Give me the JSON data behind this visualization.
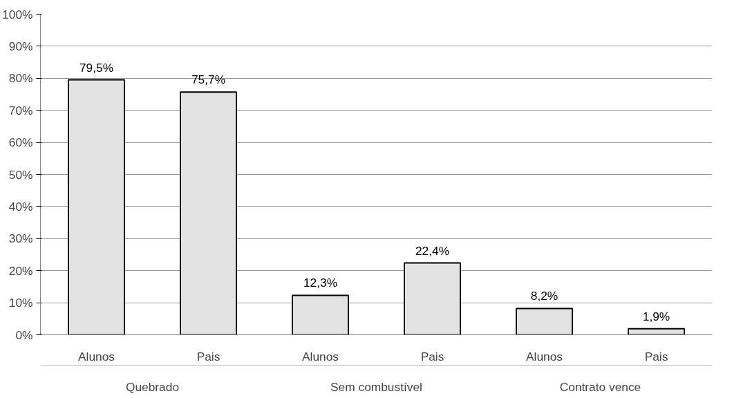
{
  "chart_data": {
    "type": "bar",
    "categories": [
      "Alunos",
      "Pais",
      "Alunos",
      "Pais",
      "Alunos",
      "Pais"
    ],
    "values": [
      79.5,
      75.7,
      12.3,
      22.4,
      8.2,
      1.9
    ],
    "value_labels": [
      "79,5%",
      "75,7%",
      "12,3%",
      "22,4%",
      "8,2%",
      "1,9%"
    ],
    "color": "#e3e3e3",
    "annotations": [
      "Quebrado",
      "Sem combustível",
      "Contrato vence"
    ],
    "ylim": [
      0,
      100
    ],
    "yticks": [
      {
        "value": 0,
        "label": "0%"
      },
      {
        "value": 10,
        "label": "10%"
      },
      {
        "value": 20,
        "label": "20%"
      },
      {
        "value": 30,
        "label": "30%"
      },
      {
        "value": 40,
        "label": "40%"
      },
      {
        "value": 50,
        "label": "50%"
      },
      {
        "value": 60,
        "label": "60%"
      },
      {
        "value": 70,
        "label": "70%"
      },
      {
        "value": 80,
        "label": "80%"
      },
      {
        "value": 90,
        "label": "90%"
      },
      {
        "value": 100,
        "label": "100%"
      }
    ],
    "grid": "y"
  }
}
